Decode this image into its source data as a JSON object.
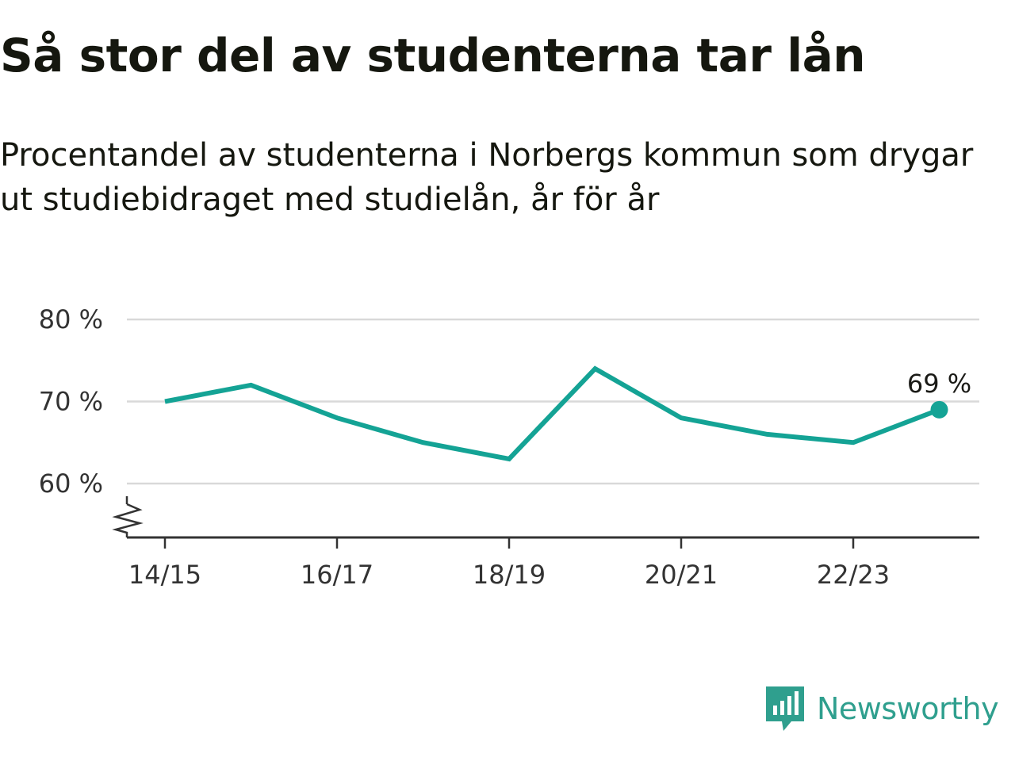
{
  "title": "Så stor del av studenterna tar lån",
  "subtitle": "Procentandel av studenterna i Norbergs kommun som drygar ut studiebidraget med studielån, år för år",
  "brand": {
    "name": "Newsworthy",
    "icon": "newsworthy-logo-icon",
    "color": "#2f9f8e"
  },
  "chart_data": {
    "type": "line",
    "x": [
      "14/15",
      "15/16",
      "16/17",
      "17/18",
      "18/19",
      "19/20",
      "20/21",
      "21/22",
      "22/23",
      "23/24"
    ],
    "xticks": [
      "14/15",
      "16/17",
      "18/19",
      "20/21",
      "22/23"
    ],
    "yticks": [
      60,
      70,
      80
    ],
    "ytick_labels": [
      "60 %",
      "70 %",
      "80 %"
    ],
    "ylim": [
      53.5,
      80
    ],
    "y_axis_break": true,
    "grid": true,
    "series": [
      {
        "values": [
          70,
          72,
          68,
          65,
          63,
          74,
          68,
          66,
          65,
          69
        ],
        "color": "#14a395"
      }
    ],
    "last_value_label": "69 %"
  }
}
